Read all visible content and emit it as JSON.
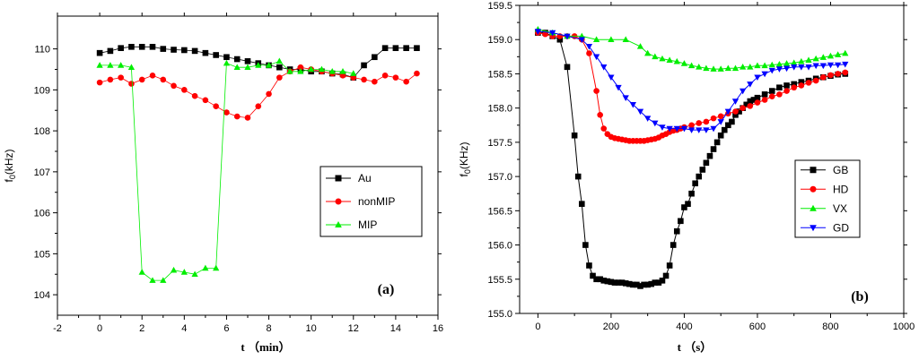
{
  "chart_data": [
    {
      "type": "line",
      "panel_label": "(a)",
      "xlabel": "t （min）",
      "ylabel_main": "f",
      "ylabel_sub": "0",
      "ylabel_unit": "(kHz)",
      "xlim": [
        -2,
        16
      ],
      "ylim": [
        103.5,
        110.8
      ],
      "xticks": [
        -2,
        0,
        2,
        4,
        6,
        8,
        10,
        12,
        14,
        16
      ],
      "yticks": [
        104,
        105,
        106,
        107,
        108,
        109,
        110
      ],
      "legend_position": "center-right",
      "series": [
        {
          "name": "Au",
          "color": "#000000",
          "marker": "square",
          "x": [
            0,
            0.5,
            1,
            1.5,
            2,
            2.5,
            3,
            3.5,
            4,
            4.5,
            5,
            5.5,
            6,
            6.5,
            7,
            7.5,
            8,
            8.5,
            9,
            9.5,
            10,
            10.5,
            11,
            11.5,
            12,
            12.5,
            13,
            13.5,
            14,
            14.5,
            15
          ],
          "y": [
            109.9,
            109.95,
            110.02,
            110.05,
            110.05,
            110.05,
            110.0,
            109.98,
            109.97,
            109.95,
            109.9,
            109.85,
            109.8,
            109.75,
            109.7,
            109.65,
            109.6,
            109.55,
            109.5,
            109.5,
            109.45,
            109.45,
            109.4,
            109.38,
            109.3,
            109.6,
            109.8,
            110.02,
            110.02,
            110.02,
            110.02
          ]
        },
        {
          "name": "nonMIP",
          "color": "#ff0000",
          "marker": "circle",
          "x": [
            0,
            0.5,
            1,
            1.5,
            2,
            2.5,
            3,
            3.5,
            4,
            4.5,
            5,
            5.5,
            6,
            6.5,
            7,
            7.5,
            8,
            8.5,
            9,
            9.5,
            10,
            10.5,
            11,
            11.5,
            12,
            12.5,
            13,
            13.5,
            14,
            14.5,
            15
          ],
          "y": [
            109.18,
            109.25,
            109.3,
            109.15,
            109.25,
            109.35,
            109.25,
            109.1,
            109.0,
            108.85,
            108.75,
            108.6,
            108.45,
            108.35,
            108.32,
            108.6,
            108.9,
            109.3,
            109.45,
            109.55,
            109.5,
            109.45,
            109.4,
            109.35,
            109.3,
            109.25,
            109.2,
            109.35,
            109.3,
            109.2,
            109.4
          ]
        },
        {
          "name": "MIP",
          "color": "#00ee00",
          "marker": "triangle-up",
          "x": [
            0,
            0.5,
            1,
            1.5,
            2,
            2.5,
            3,
            3.5,
            4,
            4.5,
            5,
            5.5,
            6,
            6.5,
            7,
            7.5,
            8,
            8.5,
            9,
            9.5,
            10,
            10.5,
            11,
            11.5,
            12
          ],
          "y": [
            109.6,
            109.6,
            109.6,
            109.55,
            104.55,
            104.35,
            104.35,
            104.6,
            104.55,
            104.5,
            104.65,
            104.65,
            109.65,
            109.55,
            109.55,
            109.6,
            109.6,
            109.7,
            109.45,
            109.45,
            109.5,
            109.5,
            109.45,
            109.45,
            109.4
          ]
        }
      ]
    },
    {
      "type": "line",
      "panel_label": "(b)",
      "xlabel": "t （s）",
      "ylabel_main": "f",
      "ylabel_sub": "0",
      "ylabel_unit": "(KHz)",
      "xlim": [
        -50,
        1000
      ],
      "ylim": [
        155.0,
        159.5
      ],
      "xticks": [
        0,
        200,
        400,
        600,
        800,
        1000
      ],
      "yticks": [
        "155.0",
        "155.5",
        "156.0",
        "156.5",
        "157.0",
        "157.5",
        "158.0",
        "158.5",
        "159.0",
        "159.5"
      ],
      "legend_position": "center-right",
      "series": [
        {
          "name": "GB",
          "color": "#000000",
          "marker": "square",
          "x": [
            0,
            20,
            40,
            60,
            80,
            100,
            110,
            120,
            130,
            140,
            150,
            160,
            170,
            180,
            190,
            200,
            210,
            220,
            230,
            240,
            250,
            260,
            270,
            280,
            290,
            300,
            310,
            320,
            330,
            340,
            350,
            360,
            370,
            380,
            390,
            400,
            410,
            420,
            430,
            440,
            450,
            460,
            470,
            480,
            490,
            500,
            510,
            520,
            530,
            540,
            550,
            560,
            570,
            580,
            590,
            600,
            620,
            640,
            660,
            680,
            700,
            720,
            740,
            760,
            780,
            800,
            820,
            840
          ],
          "y": [
            159.1,
            159.1,
            159.05,
            159.0,
            158.6,
            157.6,
            157.0,
            156.6,
            156.0,
            155.7,
            155.55,
            155.5,
            155.5,
            155.48,
            155.47,
            155.46,
            155.45,
            155.45,
            155.45,
            155.44,
            155.43,
            155.42,
            155.42,
            155.4,
            155.42,
            155.42,
            155.43,
            155.45,
            155.45,
            155.48,
            155.55,
            155.7,
            156.0,
            156.2,
            156.35,
            156.55,
            156.6,
            156.75,
            156.9,
            157.0,
            157.1,
            157.2,
            157.3,
            157.4,
            157.5,
            157.6,
            157.68,
            157.75,
            157.8,
            157.9,
            157.95,
            158.0,
            158.05,
            158.1,
            158.12,
            158.15,
            158.2,
            158.25,
            158.3,
            158.33,
            158.35,
            158.38,
            158.4,
            158.43,
            158.45,
            158.47,
            158.49,
            158.5
          ]
        },
        {
          "name": "HD",
          "color": "#ff0000",
          "marker": "circle",
          "x": [
            0,
            20,
            40,
            60,
            80,
            100,
            120,
            140,
            160,
            170,
            180,
            190,
            200,
            210,
            220,
            230,
            240,
            250,
            260,
            270,
            280,
            290,
            300,
            310,
            320,
            330,
            340,
            350,
            360,
            370,
            380,
            390,
            400,
            420,
            440,
            460,
            480,
            500,
            520,
            540,
            560,
            580,
            600,
            620,
            640,
            660,
            680,
            700,
            720,
            740,
            760,
            780,
            800,
            820,
            840
          ],
          "y": [
            159.1,
            159.08,
            159.05,
            159.05,
            159.05,
            159.05,
            159.0,
            158.8,
            158.25,
            157.9,
            157.7,
            157.62,
            157.58,
            157.56,
            157.55,
            157.54,
            157.53,
            157.52,
            157.52,
            157.52,
            157.52,
            157.52,
            157.53,
            157.54,
            157.55,
            157.57,
            157.6,
            157.62,
            157.65,
            157.67,
            157.68,
            157.7,
            157.72,
            157.75,
            157.78,
            157.8,
            157.85,
            157.88,
            157.92,
            157.95,
            158.0,
            158.03,
            158.08,
            158.12,
            158.17,
            158.2,
            158.25,
            158.3,
            158.33,
            158.37,
            158.4,
            158.45,
            158.48,
            158.5,
            158.52
          ]
        },
        {
          "name": "VX",
          "color": "#00ee00",
          "marker": "triangle-up",
          "x": [
            0,
            40,
            80,
            120,
            160,
            200,
            240,
            280,
            300,
            320,
            340,
            360,
            380,
            400,
            420,
            440,
            460,
            480,
            500,
            520,
            540,
            560,
            580,
            600,
            620,
            640,
            660,
            680,
            700,
            720,
            740,
            760,
            780,
            800,
            820,
            840
          ],
          "y": [
            159.15,
            159.1,
            159.05,
            159.05,
            159.0,
            159.0,
            159.0,
            158.9,
            158.8,
            158.75,
            158.72,
            158.7,
            158.68,
            158.65,
            158.62,
            158.6,
            158.58,
            158.57,
            158.57,
            158.58,
            158.58,
            158.6,
            158.6,
            158.62,
            158.62,
            158.63,
            158.64,
            158.65,
            158.66,
            158.68,
            158.7,
            158.72,
            158.74,
            158.76,
            158.78,
            158.8
          ]
        },
        {
          "name": "GD",
          "color": "#0000ff",
          "marker": "triangle-down",
          "x": [
            0,
            40,
            80,
            120,
            140,
            160,
            180,
            200,
            220,
            240,
            260,
            280,
            300,
            320,
            340,
            360,
            380,
            400,
            420,
            440,
            460,
            480,
            500,
            520,
            540,
            560,
            580,
            600,
            620,
            640,
            660,
            680,
            700,
            720,
            740,
            760,
            780,
            800,
            820,
            840
          ],
          "y": [
            159.12,
            159.1,
            159.05,
            159.0,
            158.9,
            158.75,
            158.6,
            158.45,
            158.3,
            158.15,
            158.05,
            157.95,
            157.85,
            157.78,
            157.72,
            157.7,
            157.7,
            157.7,
            157.68,
            157.68,
            157.68,
            157.7,
            157.8,
            157.95,
            158.1,
            158.25,
            158.35,
            158.45,
            158.5,
            158.55,
            158.57,
            158.58,
            158.6,
            158.6,
            158.6,
            158.62,
            158.62,
            158.63,
            158.63,
            158.64
          ]
        }
      ]
    }
  ]
}
